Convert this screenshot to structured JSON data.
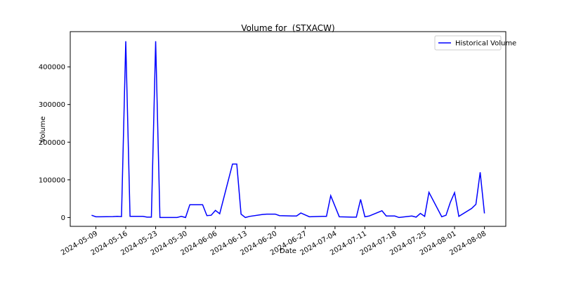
{
  "chart_data": {
    "type": "line",
    "title": "Volume for  (STXACW)",
    "x_label": "Date",
    "y_label": "Volume",
    "x": [
      "2024-05-08",
      "2024-05-09",
      "2024-05-10",
      "2024-05-13",
      "2024-05-14",
      "2024-05-15",
      "2024-05-16",
      "2024-05-17",
      "2024-05-20",
      "2024-05-21",
      "2024-05-22",
      "2024-05-23",
      "2024-05-24",
      "2024-05-28",
      "2024-05-29",
      "2024-05-30",
      "2024-05-31",
      "2024-06-03",
      "2024-06-04",
      "2024-06-05",
      "2024-06-06",
      "2024-06-07",
      "2024-06-10",
      "2024-06-11",
      "2024-06-12",
      "2024-06-13",
      "2024-06-14",
      "2024-06-17",
      "2024-06-18",
      "2024-06-20",
      "2024-06-21",
      "2024-06-24",
      "2024-06-25",
      "2024-06-26",
      "2024-06-27",
      "2024-06-28",
      "2024-07-01",
      "2024-07-02",
      "2024-07-03",
      "2024-07-05",
      "2024-07-08",
      "2024-07-09",
      "2024-07-10",
      "2024-07-11",
      "2024-07-12",
      "2024-07-15",
      "2024-07-16",
      "2024-07-17",
      "2024-07-18",
      "2024-07-19",
      "2024-07-22",
      "2024-07-23",
      "2024-07-24",
      "2024-07-25",
      "2024-07-26",
      "2024-07-29",
      "2024-07-30",
      "2024-07-31",
      "2024-08-01",
      "2024-08-02",
      "2024-08-05",
      "2024-08-06",
      "2024-08-07",
      "2024-08-08"
    ],
    "series": [
      {
        "name": "Historical Volume",
        "color": "#0000ff",
        "values": [
          6000,
          2000,
          2000,
          2500,
          3000,
          2500,
          468000,
          3000,
          3000,
          1000,
          1000,
          468000,
          0,
          0,
          3000,
          0,
          34000,
          34000,
          5000,
          6000,
          19000,
          10000,
          142000,
          142000,
          9000,
          0,
          3000,
          8000,
          9000,
          9000,
          5000,
          4000,
          4000,
          12000,
          7000,
          2000,
          3000,
          3000,
          58000,
          2000,
          1000,
          1000,
          48000,
          2000,
          4000,
          18000,
          4000,
          4000,
          4000,
          0,
          4000,
          1000,
          11000,
          3000,
          67000,
          2000,
          6000,
          40000,
          66000,
          3000,
          24000,
          35000,
          120000,
          11000
        ]
      }
    ],
    "xlim": [
      "2024-05-03",
      "2024-08-13"
    ],
    "xticks": [
      "2024-05-09",
      "2024-05-16",
      "2024-05-23",
      "2024-05-30",
      "2024-06-06",
      "2024-06-13",
      "2024-06-20",
      "2024-06-27",
      "2024-07-04",
      "2024-07-11",
      "2024-07-18",
      "2024-07-25",
      "2024-08-01",
      "2024-08-08"
    ],
    "ylim": [
      -23500,
      493500
    ],
    "yticks": [
      0,
      100000,
      200000,
      300000,
      400000
    ],
    "legend": "upper right"
  }
}
